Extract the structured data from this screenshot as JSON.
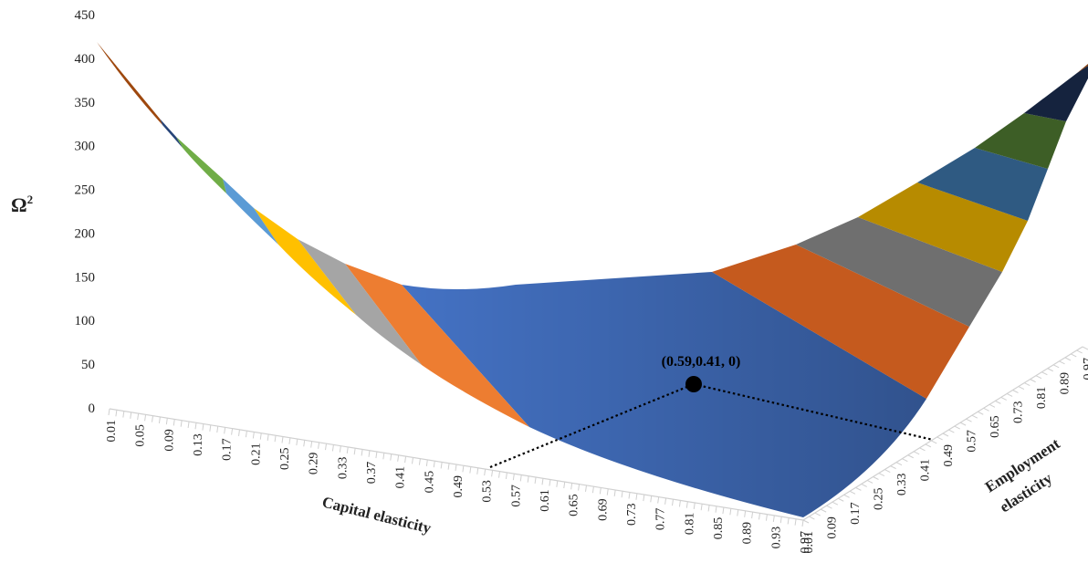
{
  "chart_data": {
    "type": "surface",
    "zlabel": "Ω",
    "zlabel_sup": "2",
    "zlim": [
      0,
      450
    ],
    "zticks": [
      "0",
      "50",
      "100",
      "150",
      "200",
      "250",
      "300",
      "350",
      "400",
      "450"
    ],
    "xlabel": "Capital elasticity",
    "ylabel_line1": "Employment",
    "ylabel_line2": "elasticity",
    "x_ticks": [
      "0.01",
      "0.05",
      "0.09",
      "0.13",
      "0.17",
      "0.21",
      "0.25",
      "0.29",
      "0.33",
      "0.37",
      "0.41",
      "0.45",
      "0.49",
      "0.53",
      "0.57",
      "0.61",
      "0.65",
      "0.69",
      "0.73",
      "0.77",
      "0.81",
      "0.85",
      "0.89",
      "0.93",
      "0.97"
    ],
    "y_ticks": [
      "0.01",
      "0.09",
      "0.17",
      "0.25",
      "0.33",
      "0.41",
      "0.49",
      "0.57",
      "0.65",
      "0.73",
      "0.81",
      "0.89",
      "0.97"
    ],
    "series": [
      {
        "range": "0-50",
        "color": "#4472C4"
      },
      {
        "range": "50-100",
        "color": "#ED7D31"
      },
      {
        "range": "100-150",
        "color": "#A5A5A5"
      },
      {
        "range": "150-200",
        "color": "#FFC000"
      },
      {
        "range": "200-250",
        "color": "#5B9BD5"
      },
      {
        "range": "250-300",
        "color": "#70AD47"
      },
      {
        "range": "300-350",
        "color": "#264478"
      },
      {
        "range": "350-400",
        "color": "#9E480E"
      }
    ],
    "annotation": {
      "text": "(0.59,0.41, 0)",
      "x": 0.59,
      "y": 0.41,
      "z": 0
    }
  }
}
